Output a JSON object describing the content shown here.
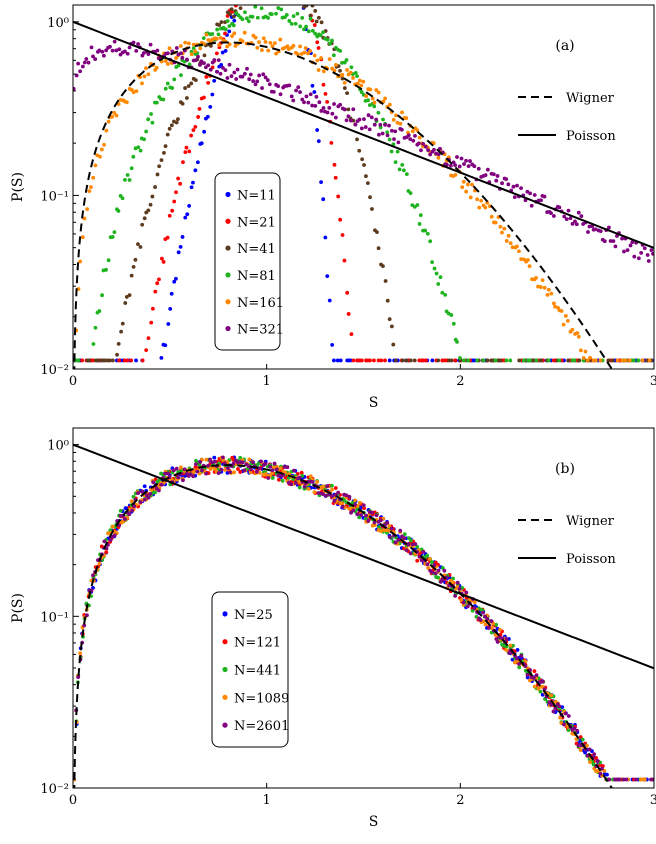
{
  "chart_data": [
    {
      "type": "scatter",
      "panel_label": "(a)",
      "xlabel": "S",
      "ylabel": "P(S)",
      "xlim": [
        0,
        3
      ],
      "ylim": [
        0.01,
        1.25
      ],
      "yscale": "log",
      "x_ticks": [
        0,
        1,
        2,
        3
      ],
      "x_tick_labels": [
        "0",
        "1",
        "2",
        "3"
      ],
      "y_ticks": [
        0.01,
        0.1,
        1
      ],
      "y_tick_labels": [
        "10⁻²",
        "10⁻¹",
        "10⁰"
      ],
      "grid": false,
      "legend_position": "center-left",
      "lines": [
        {
          "name": "Wigner",
          "style": "dashed",
          "color": "#000000",
          "function": "wigner",
          "legend_position": "top-right"
        },
        {
          "name": "Poisson",
          "style": "solid",
          "color": "#000000",
          "function": "poisson",
          "legend_position": "top-right"
        }
      ],
      "series": [
        {
          "name": "N=11",
          "color": "#0000ff",
          "beta": 8.0
        },
        {
          "name": "N=21",
          "color": "#ff0000",
          "beta": 6.0
        },
        {
          "name": "N=41",
          "color": "#5c3b1e",
          "beta": 3.8
        },
        {
          "name": "N=81",
          "color": "#1fb31f",
          "beta": 2.3
        },
        {
          "name": "N=161",
          "color": "#ff8800",
          "beta": 1.1
        },
        {
          "name": "N=321",
          "color": "#800080",
          "beta": 0.2
        }
      ]
    },
    {
      "type": "scatter",
      "panel_label": "(b)",
      "xlabel": "S",
      "ylabel": "P(S)",
      "xlim": [
        0,
        3
      ],
      "ylim": [
        0.01,
        1.25
      ],
      "yscale": "log",
      "x_ticks": [
        0,
        1,
        2,
        3
      ],
      "x_tick_labels": [
        "0",
        "1",
        "2",
        "3"
      ],
      "y_ticks": [
        0.01,
        0.1,
        1
      ],
      "y_tick_labels": [
        "10⁻²",
        "10⁻¹",
        "10⁰"
      ],
      "grid": false,
      "legend_position": "center-left",
      "lines": [
        {
          "name": "Wigner",
          "style": "dashed",
          "color": "#000000",
          "function": "wigner",
          "legend_position": "top-right"
        },
        {
          "name": "Poisson",
          "style": "solid",
          "color": "#000000",
          "function": "poisson",
          "legend_position": "top-right"
        }
      ],
      "series": [
        {
          "name": "N=25",
          "color": "#0000ff",
          "beta": 1.0
        },
        {
          "name": "N=121",
          "color": "#ff0000",
          "beta": 1.0
        },
        {
          "name": "N=441",
          "color": "#1fb31f",
          "beta": 1.0
        },
        {
          "name": "N=1089",
          "color": "#ff8800",
          "beta": 1.0
        },
        {
          "name": "N=2601",
          "color": "#800080",
          "beta": 1.0
        }
      ]
    }
  ]
}
